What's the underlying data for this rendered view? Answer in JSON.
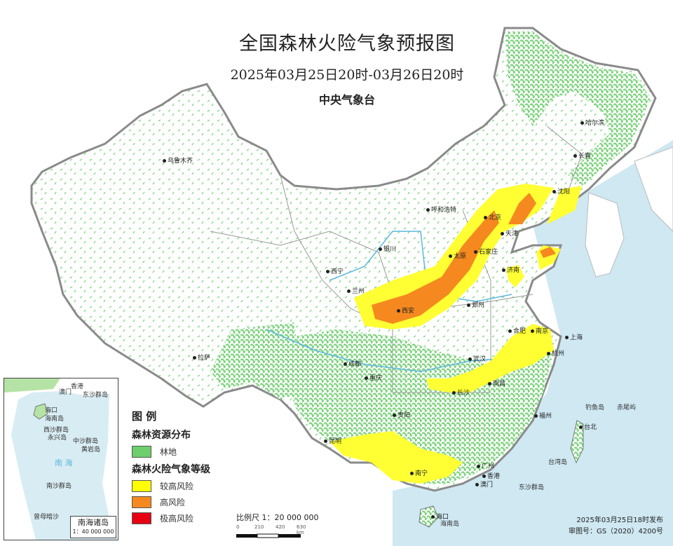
{
  "title": "全国森林火险气象预报图",
  "period": "2025年03月25日20时-03月26日20时",
  "issuer": "中央气象台",
  "legend": {
    "heading": "图 例",
    "forest_section": "森林资源分布",
    "forest_item": "林地",
    "risk_section": "森林火险气象等级",
    "risk_items": [
      {
        "label": "较高风险",
        "color": "#ffff00"
      },
      {
        "label": "高风险",
        "color": "#f5891f"
      },
      {
        "label": "极高风险",
        "color": "#e60012"
      }
    ],
    "forest_color": "#6ccf6c"
  },
  "scale": {
    "label": "比例尺 1：20 000 000",
    "ticks": [
      "0",
      "210",
      "420",
      "630 km"
    ]
  },
  "publish": {
    "time": "2025年03月25日18时发布",
    "map_no": "审图号：GS（2020）4200号"
  },
  "inset": {
    "title": "南海诸岛",
    "scale": "1：40 000 000",
    "labels": [
      "澳门",
      "香港",
      "东沙群岛",
      "海口",
      "海南岛",
      "西沙群岛",
      "永兴岛",
      "中沙群岛",
      "黄岩岛",
      "南 海",
      "南沙群岛",
      "曾母暗沙"
    ]
  },
  "cities": [
    "乌鲁木齐",
    "拉萨",
    "西宁",
    "兰州",
    "银川",
    "呼和浩特",
    "北京",
    "天津",
    "石家庄",
    "太原",
    "济南",
    "郑州",
    "西安",
    "成都",
    "重庆",
    "贵阳",
    "昆明",
    "南宁",
    "广州",
    "香港",
    "澳门",
    "海口",
    "长沙",
    "南昌",
    "武汉",
    "合肥",
    "南京",
    "上海",
    "杭州",
    "福州",
    "台北",
    "沈阳",
    "长春",
    "哈尔滨"
  ],
  "places": [
    "钓鱼岛",
    "赤尾屿",
    "台湾岛",
    "东沙群岛",
    "海南岛"
  ],
  "colors": {
    "sea": "#cfe8f2",
    "land": "#ffffff",
    "border": "#888888",
    "forest": "#7fd47f"
  }
}
